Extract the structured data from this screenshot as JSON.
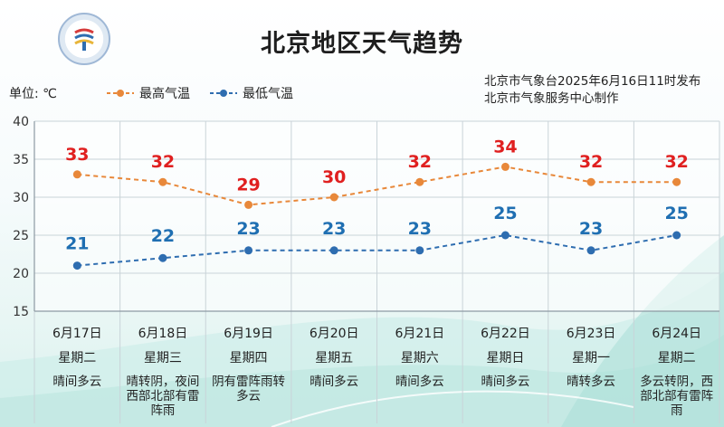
{
  "header": {
    "title": "北京地区天气趋势",
    "unit": "单位: ℃",
    "issuer_line1": "北京市气象台2025年6月16日11时发布",
    "issuer_line2": "北京市气象服务中心制作"
  },
  "colors": {
    "high": "#e8883a",
    "low": "#2e6db0",
    "high_label": "#e02020",
    "low_label": "#1f6fb2"
  },
  "chart_data": {
    "type": "line",
    "title": "北京地区天气趋势",
    "ylabel": "单位: ℃",
    "ylim": [
      15,
      40
    ],
    "yticks": [
      "15",
      "20",
      "25",
      "30",
      "35",
      "40"
    ],
    "categories": [
      "6月17日",
      "6月18日",
      "6月19日",
      "6月20日",
      "6月21日",
      "6月22日",
      "6月23日",
      "6月24日"
    ],
    "weekdays": [
      "星期二",
      "星期三",
      "星期四",
      "星期五",
      "星期六",
      "星期日",
      "星期一",
      "星期二"
    ],
    "conditions": [
      [
        "晴间多云"
      ],
      [
        "晴转阴，夜间",
        "西部北部有雷",
        "阵雨"
      ],
      [
        "阴有雷阵雨转",
        "多云"
      ],
      [
        "晴间多云"
      ],
      [
        "晴间多云"
      ],
      [
        "晴间多云"
      ],
      [
        "晴转多云"
      ],
      [
        "多云转阴，西",
        "部北部有雷阵",
        "雨"
      ]
    ],
    "series": [
      {
        "name": "最高气温",
        "values": [
          33,
          32,
          29,
          30,
          32,
          34,
          32,
          32
        ]
      },
      {
        "name": "最低气温",
        "values": [
          21,
          22,
          23,
          23,
          23,
          25,
          23,
          25
        ]
      }
    ],
    "grid": true,
    "legend": "top"
  }
}
